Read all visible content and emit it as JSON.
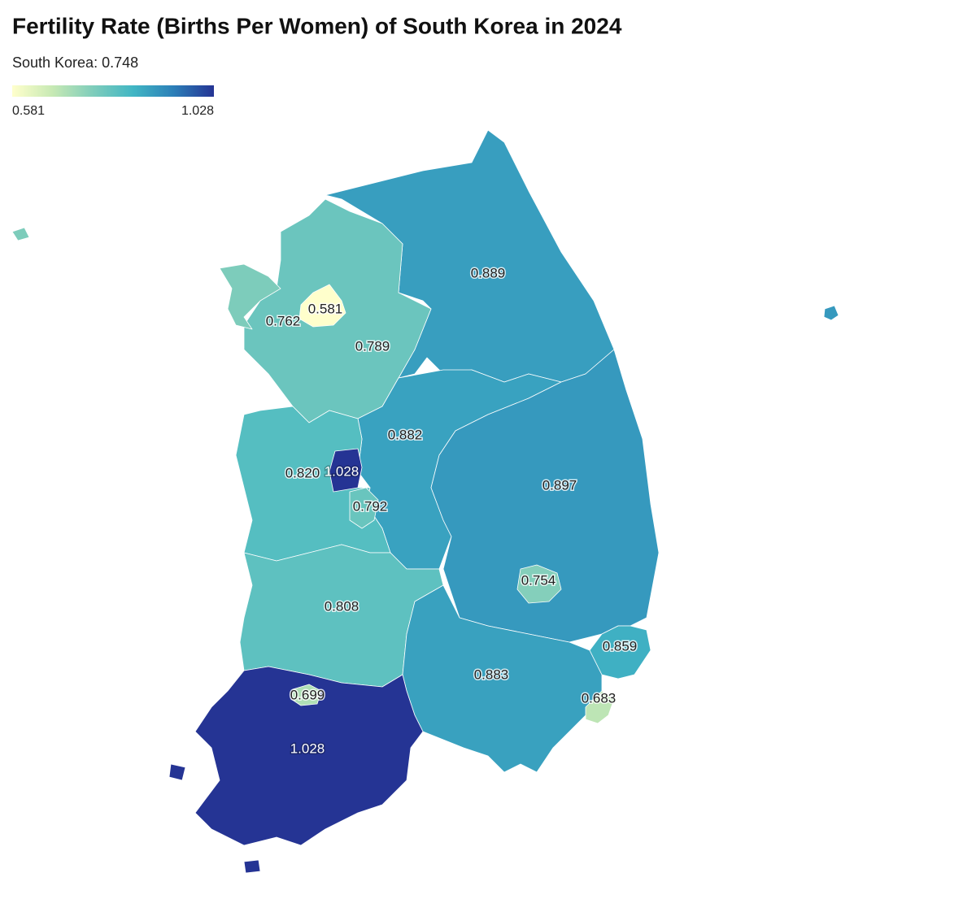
{
  "chart_data": {
    "type": "choropleth",
    "title": "Fertility Rate (Births Per Women) of South Korea in 2024",
    "subtitle": "South Korea: 0.748",
    "values": [
      0.889,
      0.581,
      0.762,
      0.789,
      0.882,
      0.82,
      1.028,
      0.792,
      0.897,
      0.754,
      0.808,
      0.883,
      0.859,
      0.683,
      1.028,
      0.699
    ],
    "value_labels": [
      "0.889",
      "0.581",
      "0.762",
      "0.789",
      "0.882",
      "0.820",
      "1.028",
      "0.792",
      "0.897",
      "0.754",
      "0.808",
      "0.883",
      "0.859",
      "0.683",
      "1.028",
      "0.699"
    ],
    "colorbar": {
      "range": [
        0.581,
        1.028
      ],
      "colors": [
        "#ffffcc",
        "#c7e9b4",
        "#7fcdbb",
        "#41b6c4",
        "#2c7fb8",
        "#253494"
      ]
    }
  }
}
